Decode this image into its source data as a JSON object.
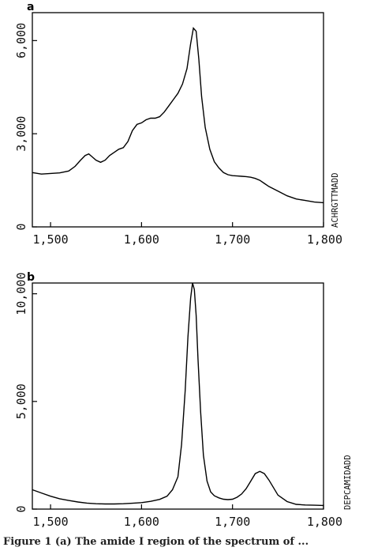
{
  "chart_data": [
    {
      "type": "line",
      "panel_label": "a",
      "side_label": "ACHRGTTMADD",
      "xlim": [
        1480,
        1800
      ],
      "ylim": [
        0,
        6900
      ],
      "x_ticks": [
        1500,
        1600,
        1700,
        1800
      ],
      "x_tick_labels": [
        "1,500",
        "1,600",
        "1,700",
        "1,800"
      ],
      "y_ticks": [
        0,
        3000,
        6000
      ],
      "y_tick_labels": [
        "0",
        "3,000",
        "6,000"
      ],
      "series": [
        {
          "x": [
            1480,
            1490,
            1500,
            1510,
            1520,
            1527,
            1533,
            1538,
            1542,
            1546,
            1550,
            1555,
            1560,
            1565,
            1570,
            1575,
            1580,
            1585,
            1590,
            1595,
            1600,
            1605,
            1610,
            1615,
            1620,
            1625,
            1630,
            1635,
            1640,
            1645,
            1650,
            1654,
            1657,
            1660,
            1663,
            1666,
            1670,
            1675,
            1680,
            1685,
            1690,
            1695,
            1700,
            1705,
            1710,
            1715,
            1720,
            1725,
            1730,
            1735,
            1740,
            1750,
            1760,
            1770,
            1780,
            1790,
            1800
          ],
          "y": [
            1750,
            1700,
            1720,
            1740,
            1800,
            1950,
            2150,
            2300,
            2350,
            2250,
            2150,
            2080,
            2150,
            2300,
            2400,
            2500,
            2550,
            2750,
            3100,
            3300,
            3350,
            3450,
            3500,
            3500,
            3550,
            3700,
            3900,
            4100,
            4300,
            4600,
            5100,
            5900,
            6400,
            6300,
            5400,
            4200,
            3200,
            2500,
            2100,
            1900,
            1750,
            1680,
            1650,
            1640,
            1630,
            1620,
            1600,
            1560,
            1500,
            1400,
            1300,
            1150,
            1000,
            900,
            850,
            800,
            780
          ]
        }
      ]
    },
    {
      "type": "line",
      "panel_label": "b",
      "side_label": "DEPCAMIDADD",
      "xlim": [
        1480,
        1800
      ],
      "ylim": [
        0,
        10500
      ],
      "x_ticks": [
        1500,
        1600,
        1700,
        1800
      ],
      "x_tick_labels": [
        "1,500",
        "1,600",
        "1,700",
        "1,800"
      ],
      "y_ticks": [
        0,
        5000,
        10000
      ],
      "y_tick_labels": [
        "0",
        "5,000",
        "10,000"
      ],
      "series": [
        {
          "x": [
            1480,
            1490,
            1500,
            1510,
            1520,
            1530,
            1540,
            1550,
            1560,
            1570,
            1580,
            1590,
            1600,
            1610,
            1620,
            1628,
            1634,
            1640,
            1644,
            1648,
            1651,
            1654,
            1656,
            1658,
            1660,
            1662,
            1665,
            1668,
            1672,
            1676,
            1680,
            1685,
            1690,
            1695,
            1700,
            1705,
            1710,
            1715,
            1720,
            1725,
            1730,
            1735,
            1740,
            1745,
            1750,
            1760,
            1770,
            1780,
            1790,
            1800
          ],
          "y": [
            900,
            750,
            600,
            480,
            400,
            330,
            280,
            250,
            240,
            240,
            250,
            270,
            300,
            360,
            450,
            600,
            900,
            1500,
            3000,
            5500,
            8000,
            9800,
            10500,
            10200,
            9000,
            7000,
            4500,
            2500,
            1300,
            800,
            620,
            520,
            460,
            440,
            460,
            550,
            700,
            950,
            1300,
            1650,
            1750,
            1650,
            1350,
            1000,
            650,
            350,
            220,
            190,
            180,
            170
          ]
        }
      ]
    }
  ],
  "caption": "Figure 1  (a) The amide I region of the spectrum of ..."
}
